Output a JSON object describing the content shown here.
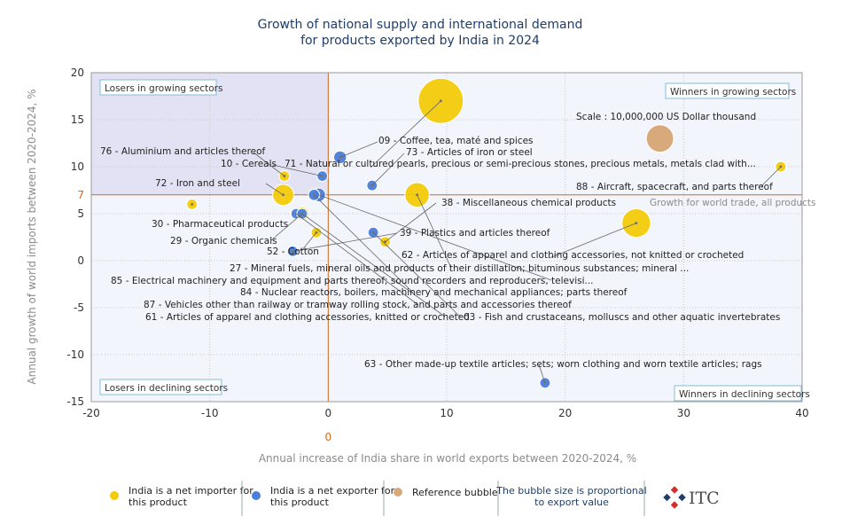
{
  "chart_data": {
    "type": "bubble",
    "title_line1": "Growth of national supply and international demand",
    "title_line2": "for products exported by India in 2024",
    "xlabel": "Annual increase of India share in world exports between 2020-2024, %",
    "ylabel": "Annual growth of world imports between 2020-2024, %",
    "xlim": [
      -20,
      40
    ],
    "ylim": [
      -15,
      20
    ],
    "x_ticks": [
      "-20",
      "-10",
      "0",
      "10",
      "20",
      "30",
      "40"
    ],
    "y_ticks": [
      "20",
      "15",
      "10",
      "5",
      "0",
      "-5",
      "-10",
      "-15"
    ],
    "x_tick_values": [
      -20,
      -10,
      0,
      10,
      20,
      30,
      40
    ],
    "y_tick_values": [
      20,
      15,
      10,
      5,
      0,
      -5,
      -10,
      -15
    ],
    "reference_x_value": 0,
    "reference_x_label": "0",
    "reference_y_value": 7,
    "reference_y_label": "7",
    "world_growth_label": "Growth for world trade, all products",
    "quadrants": {
      "top_left": "Losers in growing sectors",
      "top_right": "Winners in growing sectors",
      "bottom_left": "Losers in declining sectors",
      "bottom_right": "Winners in declining sectors"
    },
    "scale_label": "Scale : 10,000,000 US Dollar thousand",
    "reference_bubble": {
      "x": 28,
      "y": 13,
      "size": 10000000
    },
    "colors": {
      "importer": "#f5cc0a",
      "exporter": "#4a7fdb",
      "reference": "#d8a97a",
      "top_left_bg": "#e2e2f4",
      "other_bg": "#f2f5fc",
      "reference_line": "#d2691e",
      "title": "#1f3d68"
    },
    "series": [
      {
        "name": "India is a net importer for this product",
        "type": "importer"
      },
      {
        "name": "India is a net exporter for this product",
        "type": "exporter"
      }
    ],
    "points": [
      {
        "code": "71",
        "label": "71 - Natural or cultured pearls, precious or semi-precious stones, precious metals, metals clad with...",
        "x": 9.5,
        "y": 17,
        "size": 27000000,
        "type": "importer"
      },
      {
        "code": "27",
        "label": "27 - Mineral fuels, mineral oils and products of their distillation; bituminous substances; mineral ...",
        "x": 7.5,
        "y": 7,
        "size": 8000000,
        "type": "importer"
      },
      {
        "code": "88",
        "label": "88 - Aircraft, spacecraft, and parts thereof",
        "x": 38.2,
        "y": 10,
        "size": 400000,
        "type": "importer"
      },
      {
        "code": "30",
        "label": "30 - Pharmaceutical products",
        "x": -11.5,
        "y": 6,
        "size": 300000,
        "type": "importer"
      },
      {
        "code": "62",
        "label": "62 - Articles of apparel and clothing accessories, not knitted or crocheted",
        "x": 26,
        "y": 4,
        "size": 11000000,
        "type": "importer"
      },
      {
        "code": "72",
        "label": "72 - Iron and steel",
        "x": -3.8,
        "y": 7,
        "size": 6000000,
        "type": "importer"
      },
      {
        "code": "76",
        "label": "76 - Aluminium and articles thereof",
        "x": -3.7,
        "y": 9,
        "size": 400000,
        "type": "importer"
      },
      {
        "code": "29",
        "label": "29 - Organic chemicals",
        "x": -2.2,
        "y": 5,
        "size": 2500000,
        "type": "importer"
      },
      {
        "code": "52",
        "label": "52 - Cotton",
        "x": -1,
        "y": 3,
        "size": 500000,
        "type": "importer"
      },
      {
        "code": "38",
        "label": "38 - Miscellaneous chemical products",
        "x": 4.8,
        "y": 2,
        "size": 400000,
        "type": "importer"
      },
      {
        "code": "09",
        "label": "09 - Coffee, tea, maté and spices",
        "x": 1,
        "y": 11,
        "size": 2200000,
        "type": "exporter"
      },
      {
        "code": "73",
        "label": "73 - Articles of iron or steel",
        "x": 3.7,
        "y": 8,
        "size": 600000,
        "type": "exporter"
      },
      {
        "code": "10",
        "label": "10 - Cereals",
        "x": -0.5,
        "y": 9,
        "size": 200000,
        "type": "exporter"
      },
      {
        "code": "85",
        "label": "85 - Electrical machinery and equipment and parts thereof; sound recorders and reproducers, televisi...",
        "x": -0.8,
        "y": 7,
        "size": 2500000,
        "type": "exporter"
      },
      {
        "code": "84",
        "label": "84 - Nuclear reactors, boilers, machinery and mechanical appliances; parts thereof",
        "x": -1.2,
        "y": 7,
        "size": 1700000,
        "type": "exporter"
      },
      {
        "code": "87",
        "label": "87 - Vehicles other than railway or tramway rolling stock, and parts and accessories thereof",
        "x": -2.7,
        "y": 5,
        "size": 500000,
        "type": "exporter"
      },
      {
        "code": "61",
        "label": "61 - Articles of apparel and clothing accessories, knitted or crocheted",
        "x": -2.2,
        "y": 5,
        "size": 350000,
        "type": "exporter"
      },
      {
        "code": "03",
        "label": "03 - Fish and crustaceans, molluscs and other aquatic invertebrates",
        "x": 3.8,
        "y": 3,
        "size": 500000,
        "type": "exporter"
      },
      {
        "code": "39",
        "label": "39 - Plastics and articles thereof",
        "x": -3,
        "y": 1,
        "size": 350000,
        "type": "exporter"
      },
      {
        "code": "63",
        "label": "63 - Other made-up textile articles; sets; worn clothing and worn textile articles; rags",
        "x": 18.3,
        "y": -13,
        "size": 450000,
        "type": "exporter"
      }
    ]
  },
  "legend": {
    "importer_line1": "India is a net importer for",
    "importer_line2": "this product",
    "exporter_line1": "India is a net exporter for",
    "exporter_line2": "this product",
    "reference": "Reference bubble",
    "size_note_line1": "The bubble size is proportional",
    "size_note_line2": "to export value",
    "logo": "ITC"
  }
}
